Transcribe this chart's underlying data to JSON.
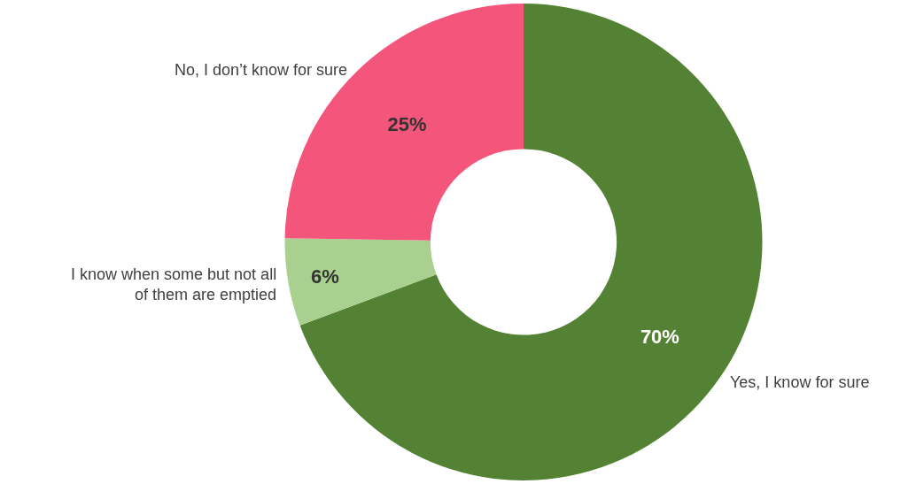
{
  "chart_data": {
    "type": "donut",
    "categories": [
      "Yes, I know for sure",
      "I know when some but not all of them are emptied",
      "No, I don’t know for sure"
    ],
    "values": [
      70,
      6,
      25
    ],
    "colors": [
      "#548235",
      "#a9d08e",
      "#f4557a"
    ],
    "value_labels": [
      "70%",
      "6%",
      "25%"
    ],
    "legend": false
  }
}
